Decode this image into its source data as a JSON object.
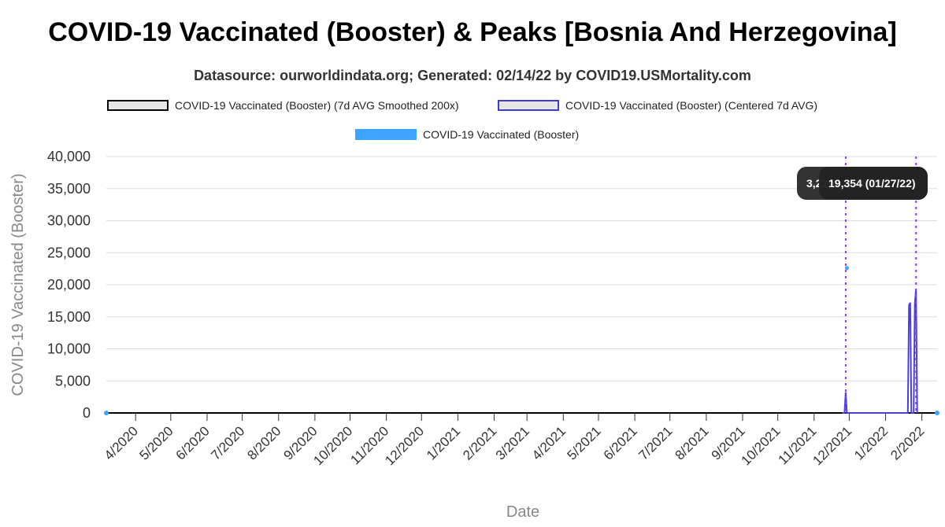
{
  "chart_data": {
    "type": "line",
    "title": "COVID-19 Vaccinated (Booster) & Peaks [Bosnia And Herzegovina]",
    "subtitle": "Datasource: ourworldindata.org; Generated: 02/14/22 by COVID19.USMortality.com",
    "xlabel": "Date",
    "ylabel": "COVID-19 Vaccinated (Booster)",
    "ylim": [
      0,
      40000
    ],
    "y_ticks": [
      "0",
      "5,000",
      "10,000",
      "15,000",
      "20,000",
      "25,000",
      "30,000",
      "35,000",
      "40,000"
    ],
    "x_ticks": [
      "4/2020",
      "5/2020",
      "6/2020",
      "7/2020",
      "8/2020",
      "9/2020",
      "10/2020",
      "11/2020",
      "12/2020",
      "1/2021",
      "2/2021",
      "3/2021",
      "4/2021",
      "5/2021",
      "6/2021",
      "7/2021",
      "8/2021",
      "9/2021",
      "10/2021",
      "11/2021",
      "12/2021",
      "1/2022",
      "2/2022"
    ],
    "xlim": [
      "2020-03-07",
      "2022-02-14"
    ],
    "grid": true,
    "legend": {
      "placement": "top",
      "entries": [
        "COVID-19 Vaccinated (Booster) (7d AVG Smoothed 200x)",
        "COVID-19 Vaccinated (Booster) (Centered 7d AVG)",
        "COVID-19 Vaccinated (Booster)"
      ]
    },
    "colors": {
      "smoothed": "#000000",
      "centered": "#4a3fd8",
      "daily": "#3ca3ff",
      "peak_line": "#9b30ff",
      "tooltip_bg": "#222222"
    },
    "series": [
      {
        "name": "COVID-19 Vaccinated (Booster) (Centered 7d AVG)",
        "points": [
          {
            "x": "2021-11-25",
            "y": 0
          },
          {
            "x": "2021-11-27",
            "y": 0
          },
          {
            "x": "2021-11-28",
            "y": 3229
          },
          {
            "x": "2021-11-29",
            "y": 0
          },
          {
            "x": "2022-01-20",
            "y": 0
          },
          {
            "x": "2022-01-21",
            "y": 16800
          },
          {
            "x": "2022-01-22",
            "y": 17200
          },
          {
            "x": "2022-01-23",
            "y": 0
          },
          {
            "x": "2022-01-25",
            "y": 0
          },
          {
            "x": "2022-01-26",
            "y": 17000
          },
          {
            "x": "2022-01-27",
            "y": 19354
          },
          {
            "x": "2022-01-28",
            "y": 0
          }
        ]
      },
      {
        "name": "COVID-19 Vaccinated (Booster)",
        "points": [
          {
            "x": "2020-03-07",
            "y": 0
          },
          {
            "x": "2021-11-29",
            "y": 22600
          },
          {
            "x": "2022-02-14",
            "y": 0
          }
        ]
      }
    ],
    "peaks": [
      {
        "x": "2021-11-28",
        "label": "3,229 (11/28/21)"
      },
      {
        "x": "2022-01-27",
        "label": "19,354 (01/27/22)"
      }
    ]
  }
}
